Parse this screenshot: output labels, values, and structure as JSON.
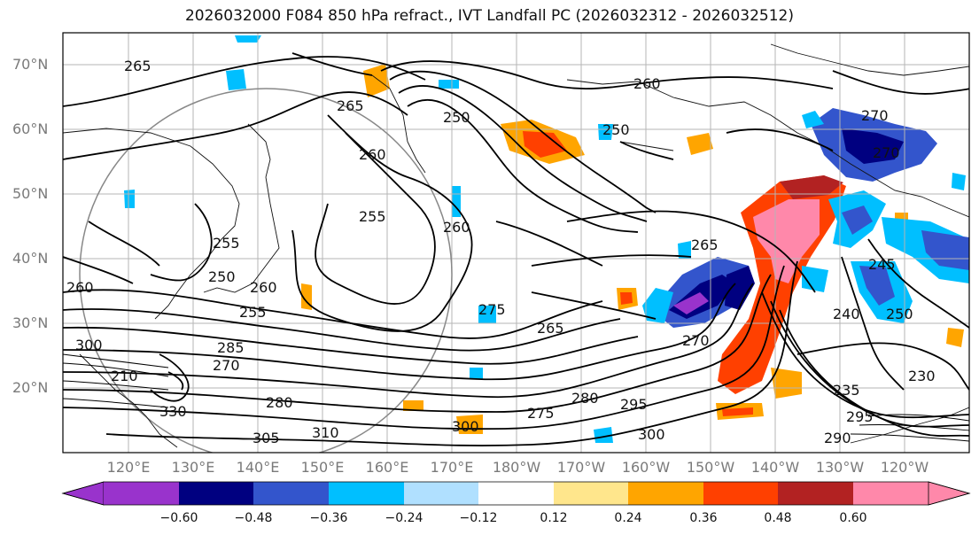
{
  "title": "2026032000 F084 850 hPa refract., IVT Landfall PC (2026032312 - 2026032512)",
  "lat_labels": [
    "70°N",
    "60°N",
    "50°N",
    "40°N",
    "30°N",
    "20°N"
  ],
  "lon_labels": [
    "120°E",
    "130°E",
    "140°E",
    "150°E",
    "160°E",
    "170°E",
    "180°W",
    "170°W",
    "160°W",
    "150°W",
    "140°W",
    "130°W",
    "120°W"
  ],
  "contour_labels": [
    "265",
    "265",
    "250",
    "260",
    "255",
    "260",
    "255",
    "250",
    "250",
    "260",
    "260",
    "275",
    "265",
    "270",
    "285",
    "270",
    "280",
    "300",
    "300",
    "305",
    "310",
    "330",
    "275",
    "280",
    "295",
    "300",
    "270",
    "265",
    "270",
    "260",
    "240",
    "250",
    "245",
    "230",
    "235",
    "290",
    "295",
    "210",
    "255"
  ],
  "colorbar": {
    "ticks": [
      "−0.60",
      "−0.48",
      "−0.36",
      "−0.24",
      "−0.12",
      "0.12",
      "0.24",
      "0.36",
      "0.48",
      "0.60"
    ],
    "colors": [
      "#9933cc",
      "#000080",
      "#3355cc",
      "#00bfff",
      "#b0e0ff",
      "#ffffff",
      "#ffe68c",
      "#ffa500",
      "#ff4000",
      "#b22222",
      "#ff88aa"
    ]
  }
}
